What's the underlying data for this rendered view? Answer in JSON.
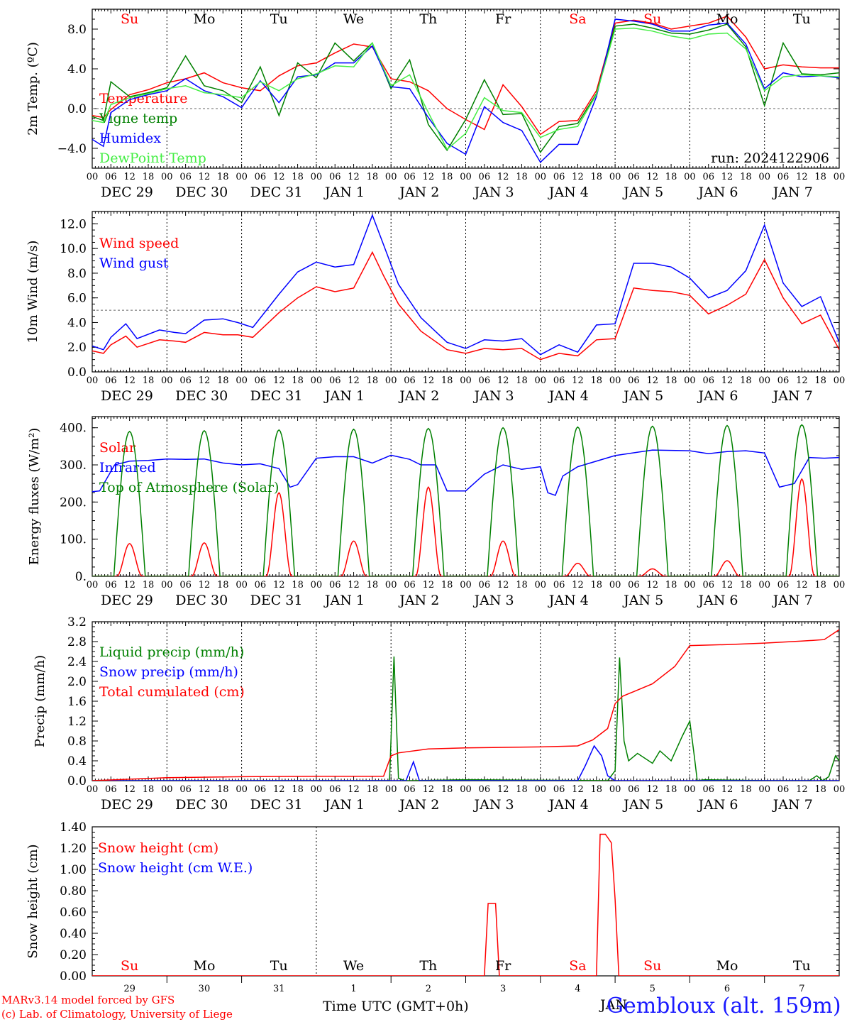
{
  "meta": {
    "run_label": "run: 2024122906",
    "credit_line1": "MARv3.14 model forced by GFS",
    "credit_line2": "(c) Lab. of Climatology, University of Liege",
    "x_caption": "Time UTC (GMT+0h)",
    "station": "Gembloux (alt. 159m)",
    "month_caption": "JAN"
  },
  "time_axis": {
    "hour_ticks": [
      "00",
      "06",
      "12",
      "18"
    ],
    "final_tick": "00",
    "dates": [
      "DEC 29",
      "DEC 30",
      "DEC 31",
      "JAN  1",
      "JAN  2",
      "JAN  3",
      "JAN  4",
      "JAN  5",
      "JAN  6",
      "JAN  7"
    ],
    "weekdays": [
      "Su",
      "Mo",
      "Tu",
      "We",
      "Th",
      "Fr",
      "Sa",
      "Su",
      "Mo",
      "Tu"
    ],
    "day_numbers": [
      "29",
      "30",
      "31",
      "1",
      "2",
      "3",
      "4",
      "5",
      "6",
      "7"
    ],
    "weekend_color": "#ff0000",
    "weekday_color": "#000000"
  },
  "chart_data": [
    {
      "type": "line",
      "id": "temperature",
      "ylabel": "2m Temp. (ºC)",
      "ylim": [
        -6,
        10
      ],
      "yticks": [
        -4,
        0,
        4,
        8
      ],
      "ytick_labels": [
        "−4.0",
        "0.0",
        "4.0",
        "8.0"
      ],
      "ref_line": 0,
      "x_unit": "days since 2024-12-29 00 UTC",
      "series": [
        {
          "name": "Temperature",
          "color": "#ff0000",
          "x": [
            0,
            0.15,
            0.25,
            0.5,
            0.75,
            1,
            1.25,
            1.5,
            1.75,
            2,
            2.25,
            2.5,
            2.75,
            3,
            3.25,
            3.5,
            3.75,
            4,
            4.25,
            4.5,
            4.75,
            5,
            5.25,
            5.5,
            5.75,
            6,
            6.25,
            6.5,
            6.75,
            7,
            7.25,
            7.5,
            7.75,
            8,
            8.25,
            8.5,
            8.75,
            9,
            9.25,
            9.5,
            9.75,
            10
          ],
          "y": [
            -0.7,
            -0.9,
            -0.1,
            1.4,
            1.9,
            2.6,
            3.0,
            3.6,
            2.6,
            2.1,
            1.8,
            3.3,
            4.3,
            4.6,
            5.6,
            6.5,
            6.2,
            3.0,
            2.7,
            1.8,
            0.0,
            -1.1,
            -2.1,
            2.4,
            0.2,
            -2.6,
            -1.3,
            -1.2,
            1.8,
            8.6,
            8.9,
            8.6,
            8.0,
            8.3,
            8.6,
            9.3,
            7.2,
            4.0,
            4.4,
            4.2,
            4.1,
            4.1
          ]
        },
        {
          "name": "Vigne temp",
          "color": "#008000",
          "x": [
            0,
            0.15,
            0.25,
            0.5,
            0.75,
            1,
            1.25,
            1.5,
            1.75,
            2,
            2.25,
            2.5,
            2.75,
            3,
            3.25,
            3.5,
            3.75,
            4,
            4.25,
            4.5,
            4.75,
            5,
            5.25,
            5.5,
            5.75,
            6,
            6.25,
            6.5,
            6.75,
            7,
            7.25,
            7.5,
            7.75,
            8,
            8.25,
            8.5,
            8.75,
            9,
            9.25,
            9.5,
            9.75,
            10
          ],
          "y": [
            -0.8,
            -1.2,
            2.7,
            1.2,
            1.6,
            2.1,
            5.3,
            2.3,
            1.8,
            0.6,
            4.2,
            -0.7,
            4.6,
            3.1,
            6.6,
            4.8,
            6.6,
            2.0,
            4.9,
            -1.6,
            -4.2,
            -1.1,
            2.9,
            -0.6,
            -0.5,
            -4.4,
            -1.8,
            -1.5,
            1.5,
            8.3,
            8.5,
            8.1,
            7.6,
            7.5,
            7.9,
            8.5,
            6.2,
            0.3,
            6.6,
            3.5,
            3.4,
            3.6
          ]
        },
        {
          "name": "Humidex",
          "color": "#0000ff",
          "x": [
            0,
            0.15,
            0.25,
            0.5,
            0.75,
            1,
            1.25,
            1.5,
            1.75,
            2,
            2.25,
            2.5,
            2.75,
            3,
            3.25,
            3.5,
            3.75,
            4,
            4.25,
            4.5,
            4.75,
            5,
            5.25,
            5.5,
            5.75,
            6,
            6.25,
            6.5,
            6.75,
            7,
            7.25,
            7.5,
            7.75,
            8,
            8.25,
            8.5,
            8.75,
            9,
            9.25,
            9.5,
            9.75,
            10
          ],
          "y": [
            -3.1,
            -3.8,
            -0.4,
            0.9,
            1.4,
            1.8,
            3.0,
            1.8,
            1.2,
            0.1,
            2.8,
            0.6,
            3.2,
            3.4,
            4.6,
            4.6,
            6.3,
            2.2,
            2.0,
            -0.9,
            -3.5,
            -4.6,
            0.2,
            -1.4,
            -2.2,
            -5.4,
            -3.6,
            -3.6,
            1.2,
            9.0,
            8.8,
            8.5,
            7.8,
            7.8,
            8.4,
            8.6,
            6.5,
            2.0,
            3.6,
            3.2,
            3.3,
            3.1
          ]
        },
        {
          "name": "DewPoint Temp",
          "color": "#44ee44",
          "x": [
            0,
            0.15,
            0.25,
            0.5,
            0.75,
            1,
            1.25,
            1.5,
            1.75,
            2,
            2.25,
            2.5,
            2.75,
            3,
            3.25,
            3.5,
            3.75,
            4,
            4.25,
            4.5,
            4.75,
            5,
            5.25,
            5.5,
            5.75,
            6,
            6.25,
            6.5,
            6.75,
            7,
            7.25,
            7.5,
            7.75,
            8,
            8.25,
            8.5,
            8.75,
            9,
            9.25,
            9.5,
            9.75,
            10
          ],
          "y": [
            -1.2,
            -1.4,
            0.4,
            1.1,
            1.5,
            2.0,
            2.3,
            1.6,
            1.4,
            1.1,
            2.7,
            1.8,
            3.0,
            3.5,
            4.3,
            4.2,
            6.6,
            2.3,
            3.4,
            -0.4,
            -4.1,
            -2.5,
            1.1,
            -0.2,
            -0.4,
            -2.9,
            -2.1,
            -1.8,
            1.4,
            8.0,
            8.1,
            7.8,
            7.3,
            7.0,
            7.5,
            7.6,
            6.0,
            1.8,
            3.2,
            3.4,
            3.3,
            3.2
          ]
        }
      ]
    },
    {
      "type": "line",
      "id": "wind",
      "ylabel": "10m Wind (m/s)",
      "ylim": [
        0,
        13
      ],
      "yticks": [
        0,
        2,
        4,
        6,
        8,
        10,
        12
      ],
      "ytick_labels": [
        "0.0",
        "2.0",
        "4.0",
        "6.0",
        "8.0",
        "10.0",
        "12.0"
      ],
      "ref_line": 5,
      "series": [
        {
          "name": "Wind speed",
          "color": "#ff0000",
          "x": [
            0,
            0.15,
            0.25,
            0.45,
            0.6,
            0.9,
            1.1,
            1.25,
            1.5,
            1.75,
            1.95,
            2.15,
            2.5,
            2.75,
            3,
            3.25,
            3.5,
            3.75,
            3.9,
            4.1,
            4.4,
            4.75,
            5,
            5.25,
            5.5,
            5.75,
            6,
            6.25,
            6.5,
            6.75,
            7,
            7.25,
            7.5,
            7.75,
            8,
            8.25,
            8.5,
            8.75,
            9,
            9.25,
            9.5,
            9.75,
            10
          ],
          "y": [
            1.7,
            1.5,
            2.2,
            2.9,
            2.0,
            2.6,
            2.5,
            2.4,
            3.2,
            3.0,
            3.0,
            2.8,
            4.8,
            6.0,
            6.9,
            6.5,
            6.8,
            9.7,
            7.8,
            5.5,
            3.3,
            1.8,
            1.5,
            1.9,
            1.8,
            1.9,
            1.0,
            1.5,
            1.3,
            2.6,
            2.7,
            6.8,
            6.6,
            6.5,
            6.2,
            4.7,
            5.4,
            6.3,
            9.1,
            6.0,
            3.9,
            4.6,
            1.8
          ]
        },
        {
          "name": "Wind gust",
          "color": "#0000ff",
          "x": [
            0,
            0.15,
            0.25,
            0.45,
            0.6,
            0.9,
            1.1,
            1.25,
            1.5,
            1.75,
            1.95,
            2.15,
            2.5,
            2.75,
            3,
            3.25,
            3.5,
            3.75,
            3.9,
            4.1,
            4.4,
            4.75,
            5,
            5.25,
            5.5,
            5.75,
            6,
            6.25,
            6.5,
            6.75,
            7,
            7.25,
            7.5,
            7.75,
            8,
            8.25,
            8.5,
            8.75,
            9,
            9.25,
            9.5,
            9.75,
            10
          ],
          "y": [
            2.1,
            1.8,
            2.8,
            3.9,
            2.7,
            3.4,
            3.2,
            3.1,
            4.2,
            4.3,
            4.0,
            3.6,
            6.3,
            8.1,
            8.9,
            8.5,
            8.7,
            12.7,
            10.3,
            7.1,
            4.4,
            2.4,
            1.9,
            2.6,
            2.5,
            2.7,
            1.4,
            2.2,
            1.6,
            3.8,
            3.9,
            8.8,
            8.8,
            8.5,
            7.6,
            6.0,
            6.6,
            8.2,
            11.9,
            7.2,
            5.3,
            6.1,
            2.4
          ]
        }
      ]
    },
    {
      "type": "line",
      "id": "energy",
      "ylabel": "Energy fluxes (W/m²)",
      "ylim": [
        0,
        430
      ],
      "yticks": [
        0,
        100,
        200,
        300,
        400
      ],
      "ytick_labels": [
        "0.",
        "100.",
        "200.",
        "300.",
        "400."
      ],
      "series": [
        {
          "name": "Solar",
          "color": "#ff0000",
          "peaks": [
            88,
            90,
            225,
            95,
            240,
            95,
            35,
            20,
            42,
            262
          ]
        },
        {
          "name": "Infrared",
          "color": "#0000ff",
          "x": [
            0,
            0.1,
            0.3,
            0.5,
            0.75,
            1,
            1.25,
            1.5,
            1.75,
            2,
            2.25,
            2.5,
            2.65,
            2.75,
            3,
            3.25,
            3.5,
            3.75,
            4,
            4.25,
            4.4,
            4.6,
            4.75,
            5,
            5.25,
            5.5,
            5.75,
            6,
            6.1,
            6.2,
            6.3,
            6.5,
            7,
            7.5,
            8,
            8.25,
            8.5,
            8.75,
            9,
            9.2,
            9.4,
            9.6,
            9.8,
            10
          ],
          "y": [
            228,
            230,
            300,
            310,
            312,
            316,
            315,
            316,
            305,
            300,
            303,
            290,
            240,
            247,
            318,
            322,
            322,
            305,
            326,
            315,
            300,
            300,
            230,
            230,
            275,
            300,
            288,
            295,
            225,
            218,
            270,
            295,
            325,
            340,
            338,
            330,
            336,
            338,
            332,
            240,
            250,
            320,
            318,
            320
          ]
        },
        {
          "name": "Top of Atmosphere (Solar)",
          "color": "#008000",
          "peaks": [
            390,
            392,
            394,
            396,
            398,
            400,
            402,
            404,
            406,
            408
          ]
        }
      ]
    },
    {
      "type": "line",
      "id": "precip",
      "ylabel": "Precip (mm/h)",
      "ylim": [
        0,
        3.2
      ],
      "yticks": [
        0,
        0.4,
        0.8,
        1.2,
        1.6,
        2.0,
        2.4,
        2.8,
        3.2
      ],
      "ytick_labels": [
        "0.0",
        "0.4",
        "0.8",
        "1.2",
        "1.6",
        "2.0",
        "2.4",
        "2.8",
        "3.2"
      ],
      "series": [
        {
          "name": "Liquid precip (mm/h)",
          "color": "#008000",
          "x": [
            0,
            3.9,
            3.98,
            4.04,
            4.1,
            4.18,
            4.3,
            5.0,
            6.9,
            7.0,
            7.06,
            7.12,
            7.18,
            7.3,
            7.5,
            7.6,
            7.75,
            7.9,
            8.0,
            8.06,
            8.1,
            8.2,
            9.0,
            9.6,
            9.7,
            9.78,
            9.86,
            9.95,
            10
          ],
          "y": [
            0,
            0,
            0,
            2.5,
            0.05,
            0,
            0,
            0.02,
            0,
            0.2,
            2.48,
            0.8,
            0.4,
            0.55,
            0.35,
            0.6,
            0.4,
            0.9,
            1.2,
            0.5,
            0,
            0.02,
            0,
            0,
            0.1,
            0,
            0.08,
            0.5,
            0.4
          ]
        },
        {
          "name": "Snow precip (mm/h)",
          "color": "#0000ff",
          "x": [
            0,
            4.2,
            4.3,
            4.38,
            4.45,
            6.5,
            6.6,
            6.72,
            6.82,
            6.9,
            7.0,
            10
          ],
          "y": [
            0,
            0,
            0.38,
            0,
            0,
            0,
            0.3,
            0.7,
            0.5,
            0.1,
            0,
            0
          ]
        },
        {
          "name": "Total cumulated (cm)",
          "color": "#ff0000",
          "x": [
            0,
            1,
            2,
            3,
            3.9,
            4.0,
            4.1,
            4.5,
            5,
            6,
            6.5,
            6.7,
            6.9,
            7.0,
            7.1,
            7.5,
            7.8,
            8.0,
            8.5,
            9.0,
            9.5,
            9.8,
            10
          ],
          "y": [
            0.0,
            0.06,
            0.08,
            0.09,
            0.09,
            0.5,
            0.56,
            0.64,
            0.66,
            0.68,
            0.7,
            0.82,
            1.05,
            1.55,
            1.7,
            1.95,
            2.3,
            2.72,
            2.74,
            2.77,
            2.81,
            2.84,
            3.04
          ]
        }
      ]
    },
    {
      "type": "line",
      "id": "snow",
      "ylabel": "Snow height (cm)",
      "ylim": [
        0,
        1.4
      ],
      "yticks": [
        0,
        0.2,
        0.4,
        0.6,
        0.8,
        1.0,
        1.2,
        1.4
      ],
      "ytick_labels": [
        "0.00",
        "0.20",
        "0.40",
        "0.60",
        "0.80",
        "1.00",
        "1.20",
        "1.40"
      ],
      "series": [
        {
          "name": "Snow height (cm)",
          "color": "#ff0000",
          "x": [
            0,
            5.25,
            5.3,
            5.4,
            5.45,
            5.5,
            6.75,
            6.8,
            6.87,
            6.95,
            7.0,
            7.05,
            7.1,
            10
          ],
          "y": [
            0,
            0,
            0.68,
            0.68,
            0.0,
            0,
            0,
            1.33,
            1.33,
            1.25,
            0.72,
            0,
            0,
            0
          ]
        },
        {
          "name": "Snow height (cm W.E.)",
          "color": "#0000ff",
          "x": [],
          "y": []
        }
      ]
    }
  ]
}
